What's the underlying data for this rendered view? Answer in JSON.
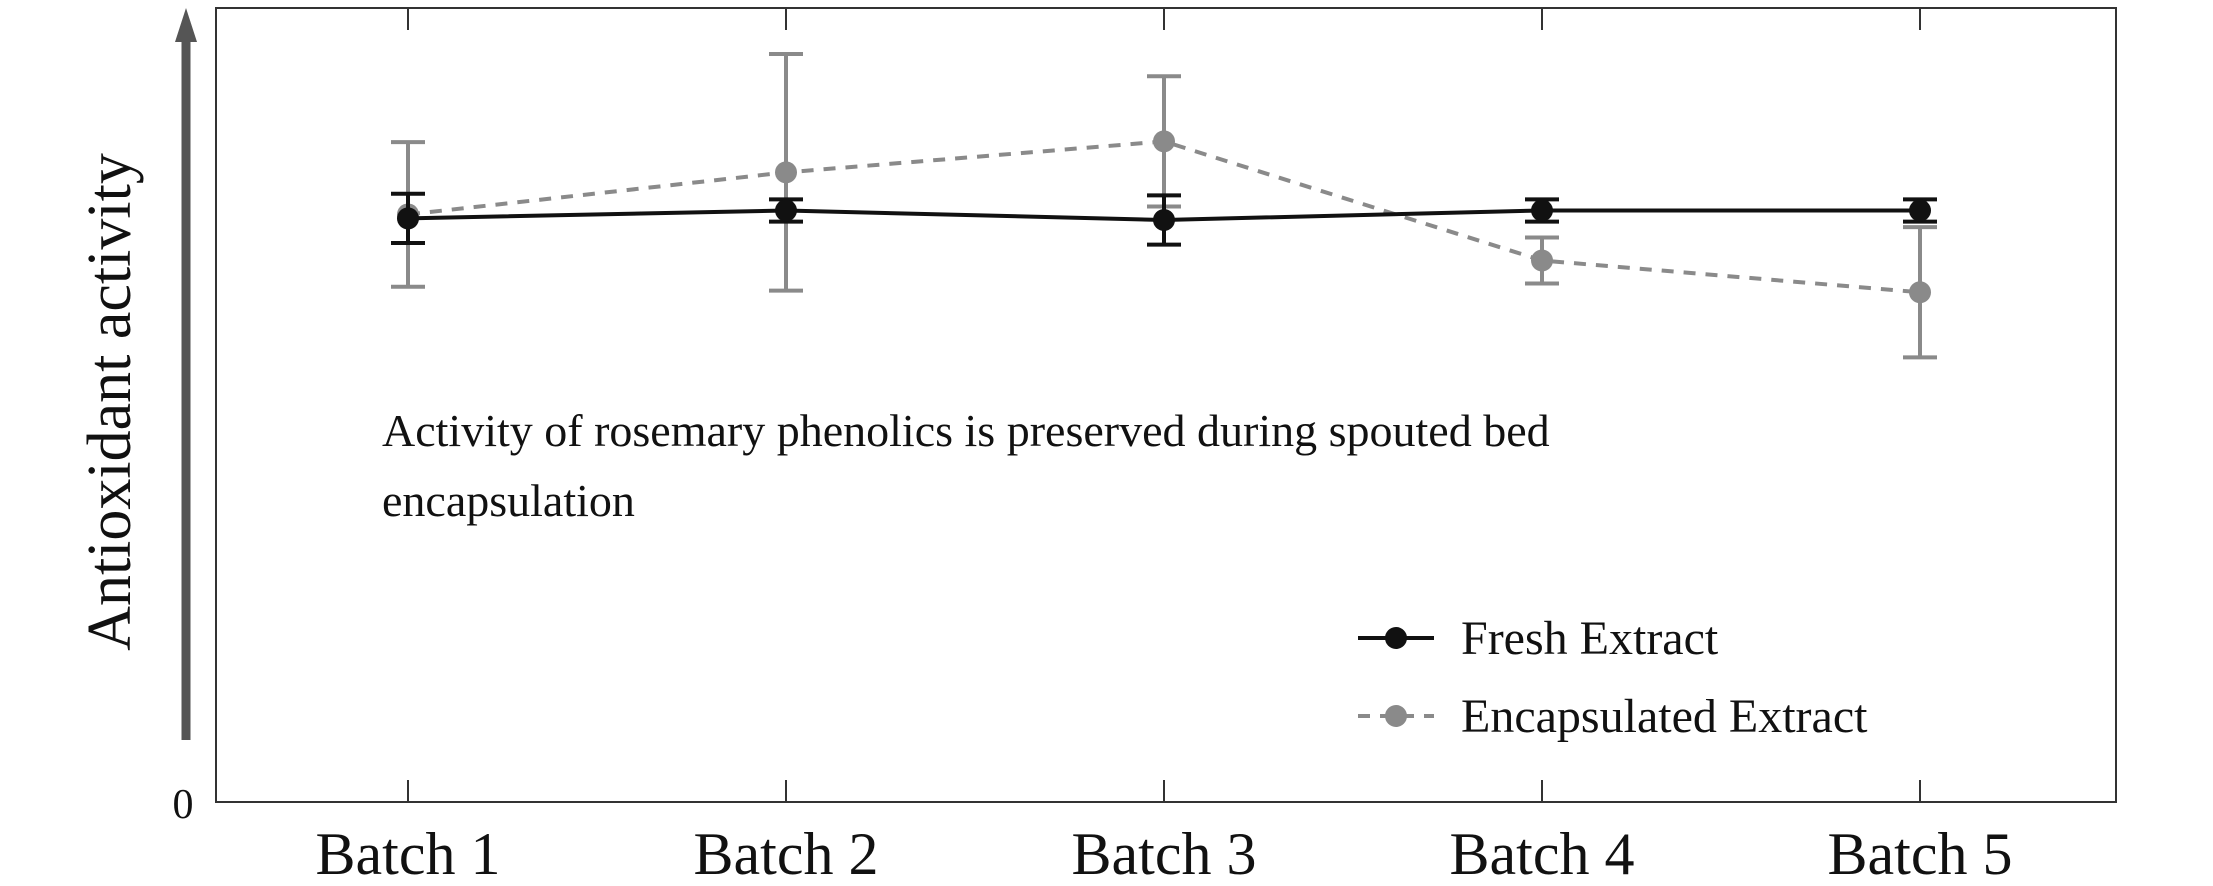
{
  "chart_data": {
    "type": "line",
    "title": "",
    "xlabel": "",
    "ylabel": "Antioxidant activity",
    "y_origin_label": "0",
    "ylim": [
      0,
      100
    ],
    "grid": false,
    "legend_position": "bottom-right",
    "categories": [
      "Batch 1",
      "Batch 2",
      "Batch 3",
      "Batch 4",
      "Batch 5"
    ],
    "series": [
      {
        "name": "Fresh Extract",
        "color": "#111111",
        "line_style": "solid",
        "values": [
          73.5,
          74.5,
          73.3,
          74.5,
          74.5
        ],
        "error": [
          3.1,
          1.4,
          3.1,
          1.4,
          1.4
        ]
      },
      {
        "name": "Encapsulated Extract",
        "color": "#8a8a8a",
        "line_style": "dashed",
        "values": [
          74.0,
          79.3,
          83.2,
          68.2,
          64.2
        ],
        "error": [
          9.1,
          14.9,
          8.2,
          2.9,
          8.2
        ]
      }
    ],
    "annotation": "Activity of rosemary phenolics is preserved during spouted bed encapsulation"
  }
}
